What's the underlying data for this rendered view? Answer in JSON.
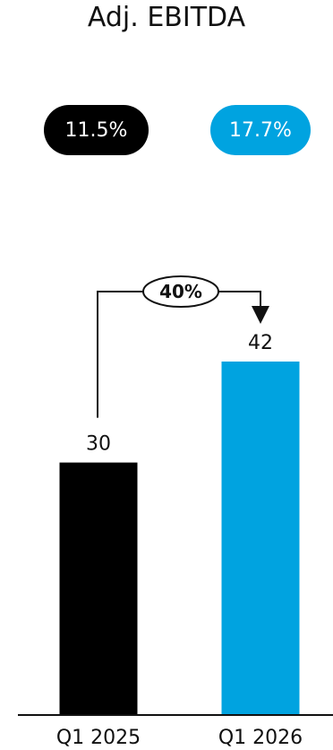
{
  "chart_data": {
    "type": "bar",
    "title": "Adj. EBITDA",
    "categories": [
      "Q1 2025",
      "Q1 2026"
    ],
    "values": [
      30,
      42
    ],
    "bar_colors": [
      "#000000",
      "#00A3E0"
    ],
    "ylim": [
      0,
      42
    ],
    "margins": [
      {
        "value": "11.5%",
        "color": "#000000"
      },
      {
        "value": "17.7%",
        "color": "#00A3E0"
      }
    ],
    "change_annotation": "40%",
    "grid": false
  }
}
